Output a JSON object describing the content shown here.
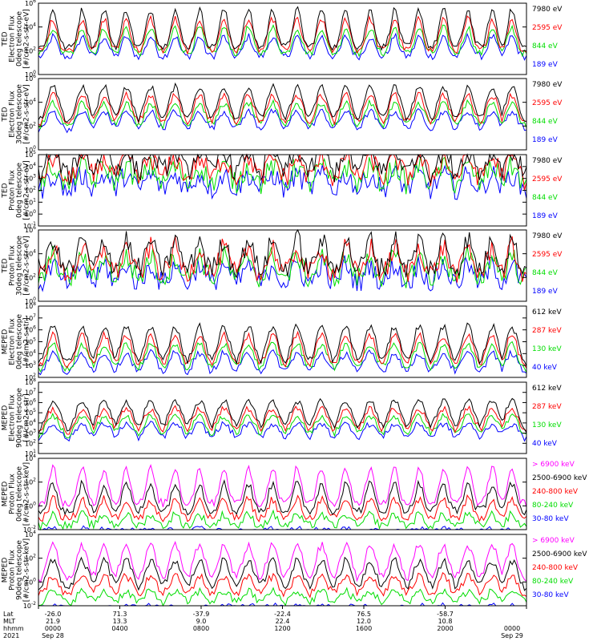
{
  "colors": {
    "c1": "#000000",
    "c2": "#ff0000",
    "c3": "#00dd00",
    "c4": "#0000ff",
    "c5": "#ff00ff",
    "axis": "#000000"
  },
  "chart_data": [
    {
      "type": "line",
      "ylabel": [
        "TED",
        "Electron Flux",
        "0deg telescope",
        "[#/cm2-s-str-eV]"
      ],
      "ytick_labels": [
        "10^6",
        "10^4",
        "10^2",
        "10^0"
      ],
      "ylim_log10": [
        0,
        6
      ],
      "style": "spiky",
      "base_log10": 1.5,
      "series": [
        {
          "name": "7980 eV",
          "color": "#000000"
        },
        {
          "name": "2595 eV",
          "color": "#ff0000"
        },
        {
          "name": "844 eV",
          "color": "#00dd00"
        },
        {
          "name": "189 eV",
          "color": "#0000ff"
        }
      ]
    },
    {
      "type": "line",
      "ylabel": [
        "TED",
        "Electron Flux",
        "30deg telescope",
        "[#/cm2-s-str-eV]"
      ],
      "ytick_labels": [
        "10^6",
        "10^4",
        "10^2",
        "10^0"
      ],
      "ylim_log10": [
        -0.5,
        6
      ],
      "style": "spiky",
      "base_log10": 1.3,
      "series": [
        {
          "name": "7980 eV",
          "color": "#000000"
        },
        {
          "name": "2595 eV",
          "color": "#ff0000"
        },
        {
          "name": "844 eV",
          "color": "#00dd00"
        },
        {
          "name": "189 eV",
          "color": "#0000ff"
        }
      ]
    },
    {
      "type": "line",
      "ylabel": [
        "TED",
        "Proton Flux",
        "0deg telescope",
        "[#/cm2-s-str-eV]"
      ],
      "ytick_labels": [
        "10^5",
        "10^4",
        "10^3",
        "10^2",
        "10^1",
        "10^0",
        "10^-1"
      ],
      "ylim_log10": [
        -1,
        5
      ],
      "style": "noisy",
      "base_log10": 1.3,
      "series": [
        {
          "name": "7980 eV",
          "color": "#000000"
        },
        {
          "name": "2595 eV",
          "color": "#ff0000"
        },
        {
          "name": "844 eV",
          "color": "#00dd00"
        },
        {
          "name": "189 eV",
          "color": "#0000ff"
        }
      ]
    },
    {
      "type": "line",
      "ylabel": [
        "TED",
        "Proton Flux",
        "30deg telescope",
        "[#/cm2-s-str-eV]"
      ],
      "ytick_labels": [
        "10^6",
        "10^4",
        "10^2",
        "10^0"
      ],
      "ylim_log10": [
        0,
        6
      ],
      "style": "noisy",
      "base_log10": 1.2,
      "series": [
        {
          "name": "7980 eV",
          "color": "#000000"
        },
        {
          "name": "2595 eV",
          "color": "#ff0000"
        },
        {
          "name": "844 eV",
          "color": "#00dd00"
        },
        {
          "name": "189 eV",
          "color": "#0000ff"
        }
      ]
    },
    {
      "type": "line",
      "ylabel": [
        "MEPED",
        "Electron Flux",
        "0deg telescope",
        "[#/cm2-s-str]"
      ],
      "ytick_labels": [
        "10^8",
        "10^7",
        "10^6",
        "10^5",
        "10^4",
        "10^3",
        "10^2"
      ],
      "ylim_log10": [
        2,
        8
      ],
      "style": "spiky",
      "base_log10": 2.35,
      "series": [
        {
          "name": "612 keV",
          "color": "#000000"
        },
        {
          "name": "287 keV",
          "color": "#ff0000"
        },
        {
          "name": "130 keV",
          "color": "#00dd00"
        },
        {
          "name": "40 keV",
          "color": "#0000ff"
        }
      ]
    },
    {
      "type": "line",
      "ylabel": [
        "MEPED",
        "Electron Flux",
        "90deg telescope",
        "[#/cm2-s-str]"
      ],
      "ytick_labels": [
        "10^8",
        "10^7",
        "10^6",
        "10^5",
        "10^4",
        "10^3",
        "10^2",
        "10^1"
      ],
      "ylim_log10": [
        1,
        8
      ],
      "style": "spiky",
      "base_log10": 2.2,
      "series": [
        {
          "name": "612 keV",
          "color": "#000000"
        },
        {
          "name": "287 keV",
          "color": "#ff0000"
        },
        {
          "name": "130 keV",
          "color": "#00dd00"
        },
        {
          "name": "40 keV",
          "color": "#0000ff"
        }
      ]
    },
    {
      "type": "line",
      "ylabel": [
        "MEPED",
        "Proton Flux",
        "0deg telescope",
        "[#/cm2-s-str-keV]"
      ],
      "ytick_labels": [
        "10^4",
        "10^2",
        "10^0",
        "10^-2"
      ],
      "ylim_log10": [
        -2,
        5
      ],
      "style": "proton",
      "base_log10": 0.5,
      "series": [
        {
          "name": "> 6900 keV",
          "color": "#ff00ff"
        },
        {
          "name": "2500-6900 keV",
          "color": "#000000"
        },
        {
          "name": "240-800 keV",
          "color": "#ff0000"
        },
        {
          "name": "80-240 keV",
          "color": "#00dd00"
        },
        {
          "name": "30-80 keV",
          "color": "#0000ff"
        }
      ]
    },
    {
      "type": "line",
      "ylabel": [
        "MEPED",
        "Proton Flux",
        "90deg telescope",
        "[#/cm2-s-str-keV]"
      ],
      "ytick_labels": [
        "10^4",
        "10^2",
        "10^0",
        "10^-2"
      ],
      "ylim_log10": [
        -2,
        5
      ],
      "style": "proton",
      "base_log10": 0.4,
      "series": [
        {
          "name": "> 6900 keV",
          "color": "#ff00ff"
        },
        {
          "name": "2500-6900 keV",
          "color": "#000000"
        },
        {
          "name": "240-800 keV",
          "color": "#ff0000"
        },
        {
          "name": "80-240 keV",
          "color": "#00dd00"
        },
        {
          "name": "30-80 keV",
          "color": "#0000ff"
        }
      ]
    }
  ],
  "xaxis": {
    "row_labels": [
      "Lat",
      "MLT",
      "hhmm",
      "2021"
    ],
    "columns": [
      {
        "lat": "-26.0",
        "mlt": "21.9",
        "hhmm": "0000",
        "date": "Sep 28"
      },
      {
        "lat": "71.3",
        "mlt": "13.3",
        "hhmm": "0400",
        "date": ""
      },
      {
        "lat": "-37.9",
        "mlt": "9.0",
        "hhmm": "0800",
        "date": ""
      },
      {
        "lat": "-22.4",
        "mlt": "22.4",
        "hhmm": "1200",
        "date": ""
      },
      {
        "lat": "76.5",
        "mlt": "12.0",
        "hhmm": "1600",
        "date": ""
      },
      {
        "lat": "-58.7",
        "mlt": "10.8",
        "hhmm": "2000",
        "date": ""
      },
      {
        "lat": "",
        "mlt": "",
        "hhmm": "0000",
        "date": "Sep 29"
      }
    ]
  }
}
